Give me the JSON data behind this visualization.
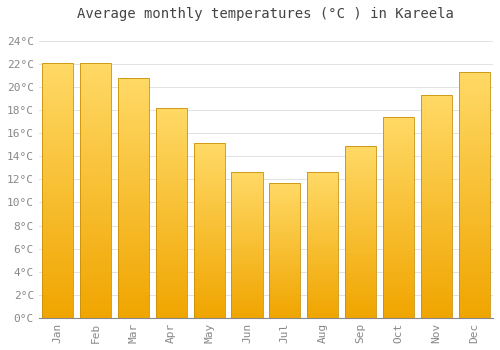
{
  "title": "Average monthly temperatures (°C ) in Kareela",
  "months": [
    "Jan",
    "Feb",
    "Mar",
    "Apr",
    "May",
    "Jun",
    "Jul",
    "Aug",
    "Sep",
    "Oct",
    "Nov",
    "Dec"
  ],
  "values": [
    22.1,
    22.1,
    20.8,
    18.2,
    15.1,
    12.6,
    11.7,
    12.6,
    14.9,
    17.4,
    19.3,
    21.3
  ],
  "bar_color_top": "#FFD966",
  "bar_color_bottom": "#F0A500",
  "bar_edge_color": "#C8900A",
  "background_color": "#FFFFFF",
  "grid_color": "#DDDDDD",
  "text_color": "#888888",
  "ylim": [
    0,
    25
  ],
  "ytick_step": 2,
  "title_fontsize": 10,
  "tick_fontsize": 8
}
